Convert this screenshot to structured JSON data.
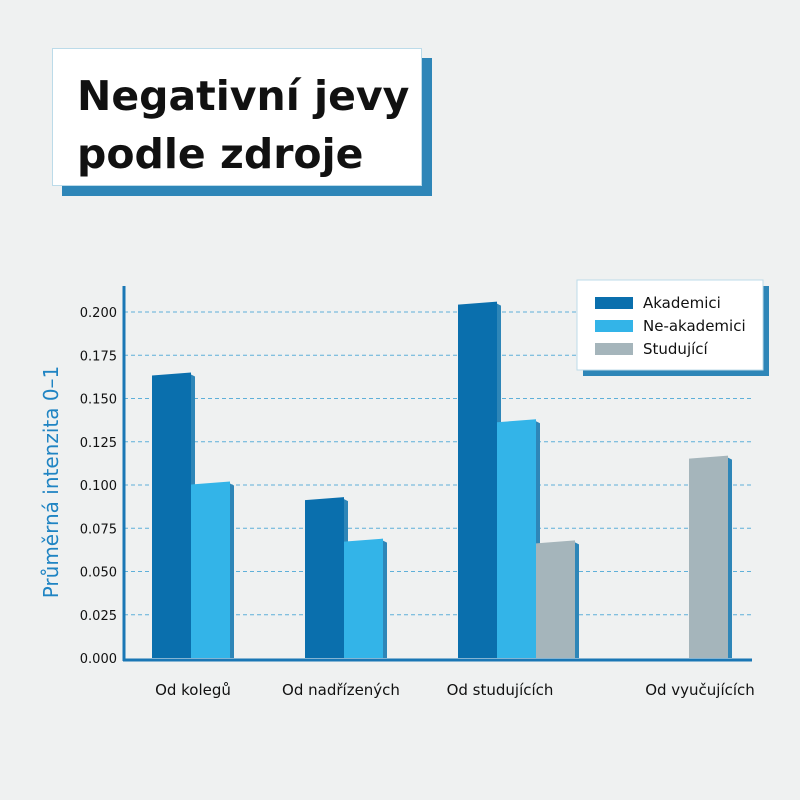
{
  "header": {
    "title_line1": "Negativní jevy",
    "title_line2": "podle zdroje"
  },
  "colors": {
    "accent": "#1f84c3",
    "akademici": "#0a6fad",
    "ne_akademici": "#33b4e8",
    "studujici": "#a5b5bb",
    "grid": "#5fb0d9",
    "axis": "#1a77b5"
  },
  "chart_data": {
    "type": "bar",
    "title": "Negativní jevy podle zdroje",
    "ylabel": "Průměrná intenzita 0–1",
    "xlabel": "",
    "categories": [
      "Od kolegů",
      "Od nadřízených",
      "Od studujících",
      "Od vyučujících"
    ],
    "series": [
      {
        "name": "Akademici",
        "values": [
          0.165,
          0.093,
          0.206,
          null
        ]
      },
      {
        "name": "Ne-akademici",
        "values": [
          0.102,
          0.069,
          0.138,
          null
        ]
      },
      {
        "name": "Studující",
        "values": [
          null,
          null,
          0.068,
          0.117
        ]
      }
    ],
    "ylim": [
      0,
      0.2
    ],
    "yticks": [
      "0.000",
      "0.025",
      "0.050",
      "0.075",
      "0.100",
      "0.125",
      "0.150",
      "0.175",
      "0.200"
    ],
    "grid": true,
    "legend": "top-right"
  }
}
